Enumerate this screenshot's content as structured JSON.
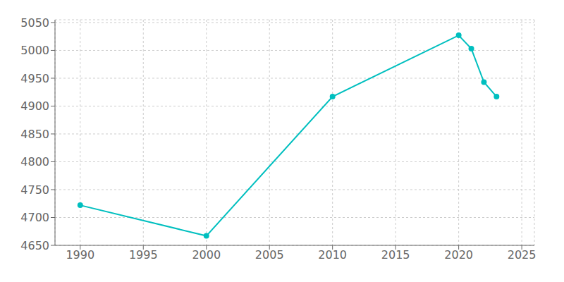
{
  "chart_data": {
    "type": "line",
    "x": [
      1990,
      2000,
      2010,
      2020,
      2021,
      2022,
      2023
    ],
    "values": [
      4722,
      4667,
      4917,
      5027,
      5003,
      4943,
      4917
    ],
    "color": "#00BFBF",
    "marker": "circle",
    "xlim": [
      1988,
      2026
    ],
    "ylim": [
      4650,
      5055
    ],
    "xticks": [
      1990,
      1995,
      2000,
      2005,
      2010,
      2015,
      2020,
      2025
    ],
    "yticks": [
      4650,
      4700,
      4750,
      4800,
      4850,
      4900,
      4950,
      5000,
      5050
    ],
    "grid": true
  }
}
